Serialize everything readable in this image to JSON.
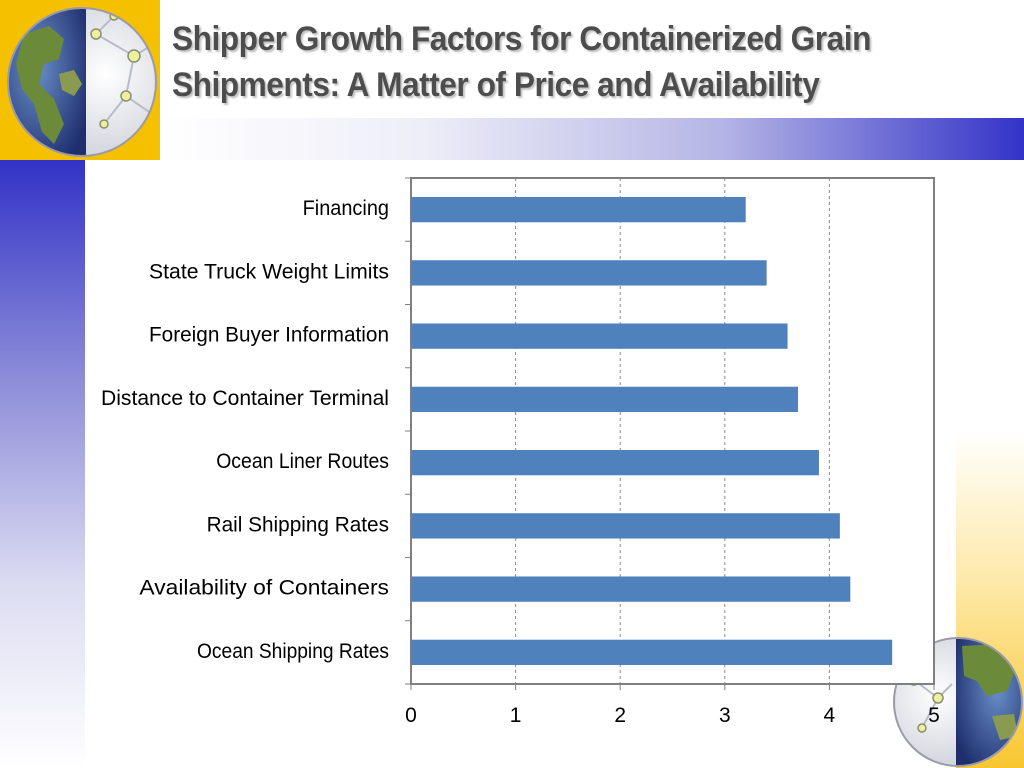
{
  "slide": {
    "title_line1": "Shipper Growth Factors for Containerized Grain",
    "title_line2": "Shipments: A Matter of Price and Availability"
  },
  "decor": {
    "top_left_globe": "globe-network-icon",
    "bottom_right_globe": "globe-network-icon",
    "accent_blue": "#3333c8",
    "accent_gold": "#f5c000"
  },
  "chart_data": {
    "type": "bar",
    "orientation": "horizontal",
    "categories": [
      "Financing",
      "State Truck Weight Limits",
      "Foreign Buyer Information",
      "Distance to Container Terminal",
      "Ocean Liner Routes",
      "Rail Shipping Rates",
      "Availability of Containers",
      "Ocean Shipping Rates"
    ],
    "values": [
      3.2,
      3.4,
      3.6,
      3.7,
      3.9,
      4.1,
      4.2,
      4.6
    ],
    "xlim": [
      0,
      5
    ],
    "xticks": [
      "0",
      "1",
      "2",
      "3",
      "4",
      "5"
    ],
    "bar_color": "#4f81bd",
    "grid": "vertical dashed",
    "legend": "none",
    "title": "",
    "xlabel": "",
    "ylabel": ""
  }
}
